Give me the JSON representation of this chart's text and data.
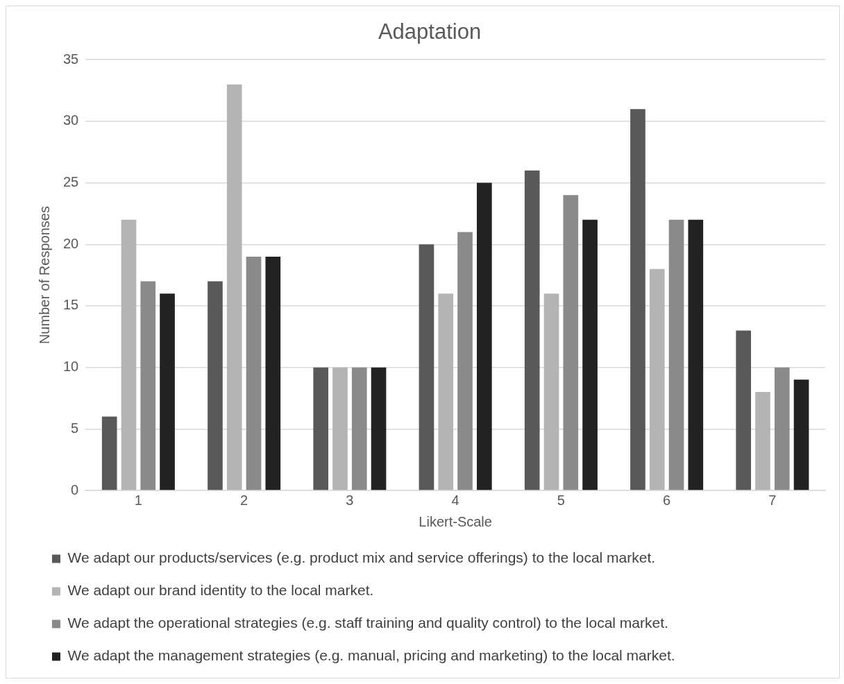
{
  "chart_data": {
    "type": "bar",
    "title": "Adaptation",
    "xlabel": "Likert-Scale",
    "ylabel": "Number of Responses",
    "categories": [
      "1",
      "2",
      "3",
      "4",
      "5",
      "6",
      "7"
    ],
    "series": [
      {
        "name": "We adapt our products/services (e.g. product mix and service offerings) to the local market.",
        "color": "#595959",
        "values": [
          6,
          17,
          10,
          20,
          26,
          31,
          13
        ]
      },
      {
        "name": "We adapt our brand identity to the local market.",
        "color": "#b4b4b4",
        "values": [
          22,
          33,
          10,
          16,
          16,
          18,
          8
        ]
      },
      {
        "name": "We adapt the operational strategies (e.g. staff training and quality control) to the local market.",
        "color": "#8a8a8a",
        "values": [
          17,
          19,
          10,
          21,
          24,
          22,
          10
        ]
      },
      {
        "name": "We adapt the management strategies (e.g. manual, pricing and marketing) to the local market.",
        "color": "#222222",
        "values": [
          16,
          19,
          10,
          25,
          22,
          22,
          9
        ]
      }
    ],
    "ylim": [
      0,
      35
    ],
    "yticks": [
      0,
      5,
      10,
      15,
      20,
      25,
      30,
      35
    ],
    "grid": "y",
    "legend": "bottom"
  }
}
